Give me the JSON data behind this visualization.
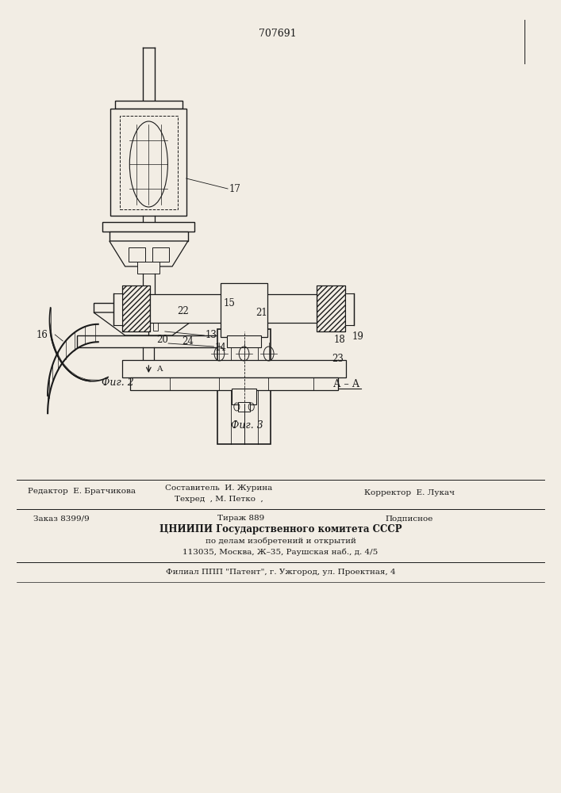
{
  "patent_number": "707691",
  "bg_color": "#f2ede4",
  "line_color": "#1a1a1a",
  "footer": {
    "sostavitel": "Составитель  И. Журина",
    "tekhred": "Техред  , М. Петко  ,",
    "korrektor": "Корректор  Е. Лукач",
    "redaktor_label": "Редактор  Е. Братчикова",
    "zakaz": "Заказ 8399/9",
    "tirazh": "Тираж 889",
    "podpisnoe": "Подписное",
    "tsniip": "ЦНИИПИ Государственного комитета СССР",
    "po_delam": "по делам изобретений и открытий",
    "address": "113035, Москва, Ж–35, Раушская наб., д. 4/5",
    "filial": "Филиал ППП \"Патент\", г. Ужгород, ул. Проектная, 4"
  }
}
